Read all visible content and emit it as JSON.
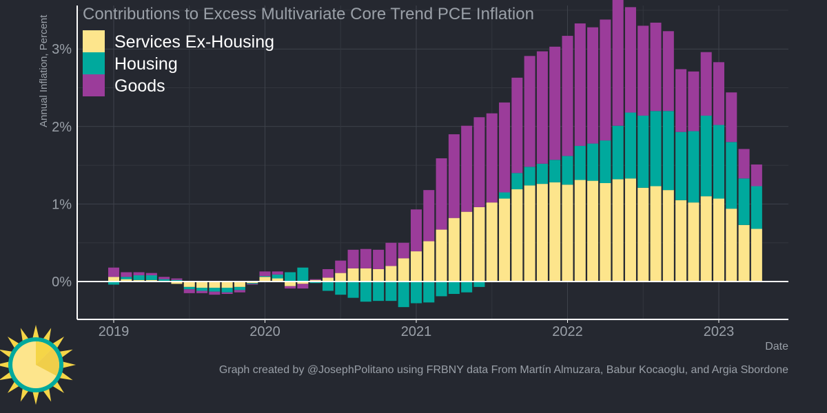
{
  "chart_data": {
    "type": "bar",
    "stacked": true,
    "title": "Contributions to Excess Multivariate Core Trend PCE Inflation",
    "xlabel": "Date",
    "ylabel": "Annual Inflation, Percent",
    "ylim": [
      -0.5,
      3.6
    ],
    "y_ticks": [
      0,
      1,
      2,
      3
    ],
    "y_tick_labels": [
      "0%",
      "1%",
      "2%",
      "3%"
    ],
    "x_ticks": [
      "2019",
      "2020",
      "2021",
      "2022",
      "2023"
    ],
    "grid": true,
    "legend_position": "top-left",
    "x": [
      "2019-01",
      "2019-02",
      "2019-03",
      "2019-04",
      "2019-05",
      "2019-06",
      "2019-07",
      "2019-08",
      "2019-09",
      "2019-10",
      "2019-11",
      "2019-12",
      "2020-01",
      "2020-02",
      "2020-03",
      "2020-04",
      "2020-05",
      "2020-06",
      "2020-07",
      "2020-08",
      "2020-09",
      "2020-10",
      "2020-11",
      "2020-12",
      "2021-01",
      "2021-02",
      "2021-03",
      "2021-04",
      "2021-05",
      "2021-06",
      "2021-07",
      "2021-08",
      "2021-09",
      "2021-10",
      "2021-11",
      "2021-12",
      "2022-01",
      "2022-02",
      "2022-03",
      "2022-04",
      "2022-05",
      "2022-06",
      "2022-07",
      "2022-08",
      "2022-09",
      "2022-10",
      "2022-11",
      "2022-12",
      "2023-01",
      "2023-02",
      "2023-03",
      "2023-04"
    ],
    "series": [
      {
        "name": "Services Ex-Housing",
        "color": "#FDE58C",
        "values": [
          0.06,
          0.03,
          0.02,
          0.02,
          0.01,
          -0.03,
          -0.07,
          -0.08,
          -0.08,
          -0.08,
          -0.07,
          -0.02,
          0.06,
          0.04,
          -0.06,
          -0.03,
          0.02,
          0.05,
          0.11,
          0.17,
          0.17,
          0.16,
          0.2,
          0.3,
          0.39,
          0.52,
          0.67,
          0.82,
          0.9,
          0.96,
          1.02,
          1.07,
          1.19,
          1.24,
          1.26,
          1.28,
          1.25,
          1.31,
          1.3,
          1.27,
          1.32,
          1.33,
          1.21,
          1.23,
          1.18,
          1.05,
          1.02,
          1.1,
          1.07,
          0.94,
          0.73,
          0.68
        ]
      },
      {
        "name": "Housing",
        "color": "#00A99D",
        "values": [
          -0.04,
          0.03,
          0.06,
          0.06,
          0.02,
          0.02,
          -0.03,
          -0.04,
          -0.05,
          -0.06,
          -0.04,
          -0.01,
          0.01,
          0.05,
          0.12,
          0.18,
          -0.02,
          -0.12,
          -0.17,
          -0.21,
          -0.26,
          -0.25,
          -0.25,
          -0.33,
          -0.28,
          -0.27,
          -0.19,
          -0.16,
          -0.14,
          -0.07,
          0.0,
          0.08,
          0.21,
          0.24,
          0.26,
          0.29,
          0.37,
          0.44,
          0.48,
          0.55,
          0.69,
          0.85,
          0.93,
          0.97,
          1.02,
          0.88,
          0.92,
          1.04,
          0.95,
          0.86,
          0.6,
          0.55
        ]
      },
      {
        "name": "Goods",
        "color": "#9B3C9A",
        "values": [
          0.12,
          0.06,
          0.04,
          0.03,
          0.03,
          0.02,
          -0.05,
          -0.03,
          -0.04,
          -0.02,
          -0.03,
          -0.01,
          0.06,
          0.04,
          -0.03,
          -0.06,
          0.01,
          0.11,
          0.16,
          0.24,
          0.25,
          0.25,
          0.3,
          0.2,
          0.54,
          0.66,
          0.92,
          1.08,
          1.11,
          1.16,
          1.15,
          1.16,
          1.23,
          1.43,
          1.45,
          1.46,
          1.55,
          1.58,
          1.5,
          1.56,
          1.63,
          1.36,
          1.16,
          1.14,
          1.03,
          0.81,
          0.77,
          0.82,
          0.81,
          0.64,
          0.38,
          0.28
        ]
      }
    ]
  },
  "footer": {
    "credit": "Graph created by @JosephPolitano using FRBNY data From Martín Almuzara, Babur Kocaoglu, and Argia Sbordone"
  },
  "logo": {
    "icon": "sun-logo-icon"
  }
}
